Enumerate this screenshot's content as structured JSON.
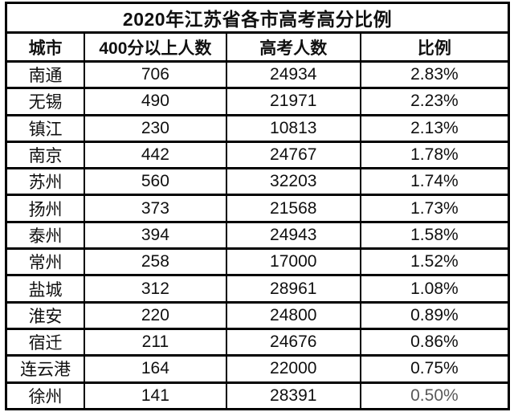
{
  "accent_colors": {
    "border": "#000000",
    "text": "#101010",
    "background": "#ffffff"
  },
  "table": {
    "title": "2020年江苏省各市高考高分比例",
    "columns": [
      "城市",
      "400分以上人数",
      "高考人数",
      "比例"
    ],
    "rows": [
      [
        "南通",
        "706",
        "24934",
        "2.83%"
      ],
      [
        "无锡",
        "490",
        "21971",
        "2.23%"
      ],
      [
        "镇江",
        "230",
        "10813",
        "2.13%"
      ],
      [
        "南京",
        "442",
        "24767",
        "1.78%"
      ],
      [
        "苏州",
        "560",
        "32203",
        "1.74%"
      ],
      [
        "扬州",
        "373",
        "21568",
        "1.73%"
      ],
      [
        "泰州",
        "394",
        "24943",
        "1.58%"
      ],
      [
        "常州",
        "258",
        "17000",
        "1.52%"
      ],
      [
        "盐城",
        "312",
        "28961",
        "1.08%"
      ],
      [
        "淮安",
        "220",
        "24800",
        "0.89%"
      ],
      [
        "宿迁",
        "211",
        "24676",
        "0.86%"
      ],
      [
        "连云港",
        "164",
        "22000",
        "0.75%"
      ],
      [
        "徐州",
        "141",
        "28391",
        "0.50%"
      ]
    ]
  },
  "chart_data": {
    "type": "table",
    "title": "2020年江苏省各市高考高分比例",
    "columns": [
      "城市",
      "400分以上人数",
      "高考人数",
      "比例"
    ],
    "categories": [
      "南通",
      "无锡",
      "镇江",
      "南京",
      "苏州",
      "扬州",
      "泰州",
      "常州",
      "盐城",
      "淮安",
      "宿迁",
      "连云港",
      "徐州"
    ],
    "series": [
      {
        "name": "400分以上人数",
        "values": [
          706,
          490,
          230,
          442,
          560,
          373,
          394,
          258,
          312,
          220,
          211,
          164,
          141
        ]
      },
      {
        "name": "高考人数",
        "values": [
          24934,
          21971,
          10813,
          24767,
          32203,
          21568,
          24943,
          17000,
          28961,
          24800,
          24676,
          22000,
          28391
        ]
      },
      {
        "name": "比例",
        "values": [
          "2.83%",
          "2.23%",
          "2.13%",
          "1.78%",
          "1.74%",
          "1.73%",
          "1.58%",
          "1.52%",
          "1.08%",
          "0.89%",
          "0.86%",
          "0.75%",
          "0.50%"
        ]
      }
    ]
  }
}
